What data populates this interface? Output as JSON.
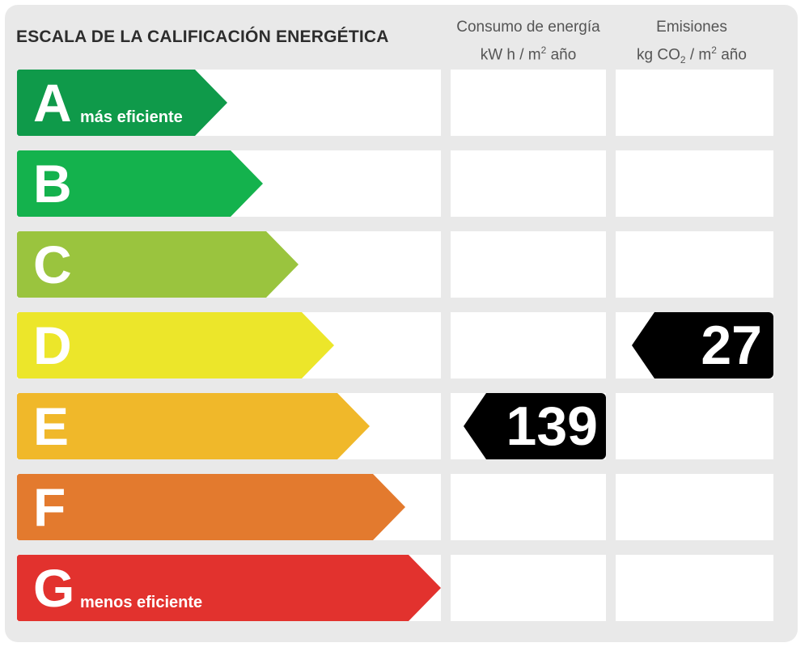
{
  "title": "ESCALA DE LA CALIFICACIÓN ENERGÉTICA",
  "energy_header": {
    "line1": "Consumo de energía",
    "line2_pre": "kW h  / m",
    "line2_sup": "2",
    "line2_post": " año"
  },
  "emissions_header": {
    "line1": "Emisiones",
    "line2_pre": "kg CO",
    "line2_sub": "2",
    "line2_post": "  / m",
    "line2_sup": "2",
    "line2_post2": " año"
  },
  "ratings": [
    {
      "letter": "A",
      "caption": "más eficiente",
      "color": "#0f9a4a"
    },
    {
      "letter": "B",
      "caption": "",
      "color": "#14b24d"
    },
    {
      "letter": "C",
      "caption": "",
      "color": "#9ac43e"
    },
    {
      "letter": "D",
      "caption": "",
      "color": "#ece62a"
    },
    {
      "letter": "E",
      "caption": "",
      "color": "#f0b82a"
    },
    {
      "letter": "F",
      "caption": "",
      "color": "#e37a2e"
    },
    {
      "letter": "G",
      "caption": "menos eficiente",
      "color": "#e2322e"
    }
  ],
  "energy_value": {
    "rating": "E",
    "value": "139"
  },
  "emissions_value": {
    "rating": "D",
    "value": "27"
  }
}
